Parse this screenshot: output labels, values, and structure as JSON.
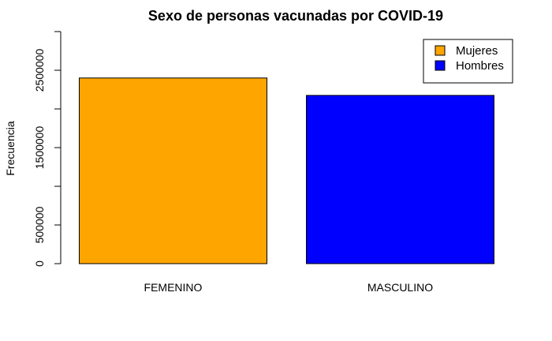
{
  "chart_data": {
    "type": "bar",
    "title": "Sexo de personas vacunadas por COVID-19",
    "xlabel": "",
    "ylabel": "Frecuencia",
    "categories": [
      "FEMENINO",
      "MASCULINO"
    ],
    "values": [
      2400000,
      2175000
    ],
    "colors": [
      "#FFA500",
      "#0000FF"
    ],
    "ylim": [
      0,
      3000000
    ],
    "yticks": [
      0,
      500000,
      1000000,
      1500000,
      2000000,
      2500000,
      3000000
    ],
    "ytick_labels": [
      "0",
      "500000",
      "",
      "1500000",
      "",
      "2500000",
      ""
    ],
    "grid": false,
    "legend": {
      "position": "top-right",
      "entries": [
        {
          "label": "Mujeres",
          "color": "#FFA500"
        },
        {
          "label": "Hombres",
          "color": "#0000FF"
        }
      ]
    }
  }
}
